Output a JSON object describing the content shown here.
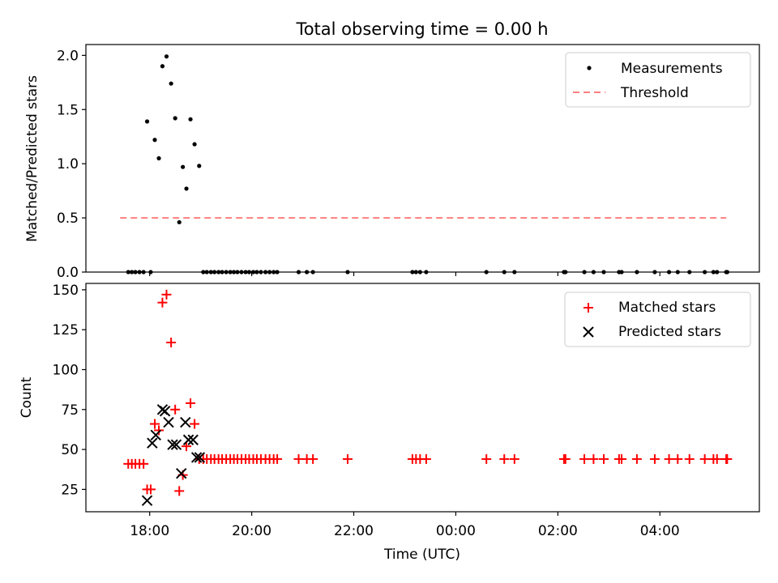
{
  "chart_data": [
    {
      "type": "scatter",
      "title": "Total observing time = 0.00 h",
      "xlabel": "",
      "ylabel": "Matched/Predicted stars",
      "xlim": [
        16.75,
        29.95
      ],
      "ylim": [
        0,
        2.1
      ],
      "yticks": [
        0.0,
        0.5,
        1.0,
        1.5,
        2.0
      ],
      "ytick_labels": [
        "0.0",
        "0.5",
        "1.0",
        "1.5",
        "2.0"
      ],
      "legend_position": "upper right",
      "threshold": {
        "name": "Threshold",
        "value": 0.5,
        "x_range": [
          17.42,
          29.3
        ],
        "color": "#ff7f7f"
      },
      "series": [
        {
          "name": "Measurements",
          "color": "#000000",
          "x": [
            17.58,
            17.65,
            17.72,
            17.8,
            17.88,
            17.95,
            18.02,
            18.1,
            18.18,
            18.25,
            18.33,
            18.42,
            18.5,
            18.58,
            18.65,
            18.72,
            18.8,
            18.88,
            18.97,
            19.05,
            19.12,
            19.2,
            19.27,
            19.35,
            19.42,
            19.5,
            19.58,
            19.65,
            19.72,
            19.8,
            19.88,
            19.95,
            20.03,
            20.1,
            20.18,
            20.27,
            20.35,
            20.43,
            20.5,
            20.92,
            21.08,
            21.2,
            21.88,
            23.15,
            23.22,
            23.3,
            23.42,
            24.6,
            24.95,
            25.15,
            26.12,
            26.15,
            26.52,
            26.7,
            26.9,
            27.2,
            27.25,
            27.55,
            27.9,
            28.18,
            28.35,
            28.58,
            28.88,
            29.05,
            29.12,
            29.3,
            29.32
          ],
          "y": [
            0,
            0,
            0,
            0,
            0,
            1.39,
            0,
            1.22,
            1.05,
            1.9,
            1.99,
            1.74,
            1.42,
            0.46,
            0.97,
            0.77,
            1.41,
            1.18,
            0.98,
            0,
            0,
            0,
            0,
            0,
            0,
            0,
            0,
            0,
            0,
            0,
            0,
            0,
            0,
            0,
            0,
            0,
            0,
            0,
            0,
            0,
            0,
            0,
            0,
            0,
            0,
            0,
            0,
            0,
            0,
            0,
            0,
            0,
            0,
            0,
            0,
            0,
            0,
            0,
            0,
            0,
            0,
            0,
            0,
            0,
            0,
            0,
            0
          ]
        }
      ]
    },
    {
      "type": "scatter",
      "title": "",
      "xlabel": "Time (UTC)",
      "ylabel": "Count",
      "xlim": [
        16.75,
        29.95
      ],
      "ylim": [
        11,
        154
      ],
      "xticks": [
        18,
        20,
        22,
        24,
        26,
        28
      ],
      "xtick_labels": [
        "18:00",
        "20:00",
        "22:00",
        "00:00",
        "02:00",
        "04:00"
      ],
      "yticks": [
        25,
        50,
        75,
        100,
        125,
        150
      ],
      "ytick_labels": [
        "25",
        "50",
        "75",
        "100",
        "125",
        "150"
      ],
      "legend_position": "upper right",
      "series": [
        {
          "name": "Matched stars",
          "marker": "plus",
          "color": "#ff0000",
          "x": [
            17.58,
            17.65,
            17.72,
            17.8,
            17.88,
            17.95,
            18.02,
            18.1,
            18.18,
            18.25,
            18.33,
            18.42,
            18.5,
            18.58,
            18.65,
            18.72,
            18.8,
            18.88,
            18.97,
            19.05,
            19.12,
            19.2,
            19.27,
            19.35,
            19.42,
            19.5,
            19.58,
            19.65,
            19.72,
            19.8,
            19.88,
            19.95,
            20.03,
            20.1,
            20.18,
            20.27,
            20.35,
            20.43,
            20.5,
            20.92,
            21.08,
            21.2,
            21.88,
            23.15,
            23.22,
            23.3,
            23.42,
            24.6,
            24.95,
            25.15,
            26.12,
            26.15,
            26.52,
            26.7,
            26.9,
            27.2,
            27.25,
            27.55,
            27.9,
            28.18,
            28.35,
            28.58,
            28.88,
            29.05,
            29.12,
            29.3,
            29.32
          ],
          "y": [
            41,
            41,
            41,
            41,
            41,
            25,
            25,
            66,
            62,
            142,
            147,
            117,
            75,
            24,
            34,
            52,
            79,
            66,
            44,
            44,
            44,
            44,
            44,
            44,
            44,
            44,
            44,
            44,
            44,
            44,
            44,
            44,
            44,
            44,
            44,
            44,
            44,
            44,
            44,
            44,
            44,
            44,
            44,
            44,
            44,
            44,
            44,
            44,
            44,
            44,
            44,
            44,
            44,
            44,
            44,
            44,
            44,
            44,
            44,
            44,
            44,
            44,
            44,
            44,
            44,
            44,
            44
          ]
        },
        {
          "name": "Predicted stars",
          "marker": "x",
          "color": "#000000",
          "x": [
            17.95,
            18.05,
            18.12,
            18.25,
            18.3,
            18.37,
            18.45,
            18.52,
            18.62,
            18.7,
            18.76,
            18.85,
            18.92,
            18.98
          ],
          "y": [
            18,
            54,
            59,
            75,
            74,
            67,
            53,
            53,
            35,
            67,
            56,
            56,
            45,
            45
          ]
        }
      ]
    }
  ]
}
